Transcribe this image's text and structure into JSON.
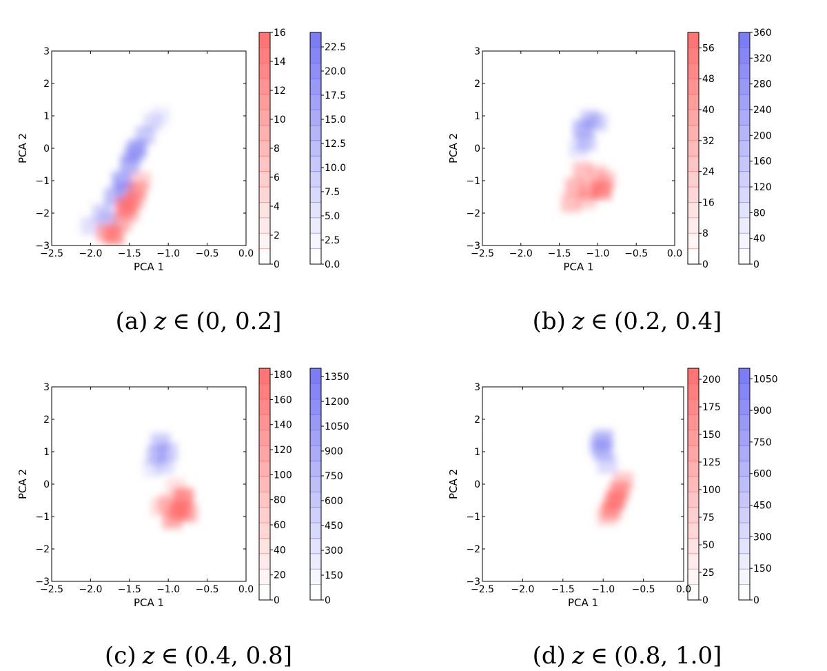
{
  "chart_data": [
    {
      "type": "heatmap",
      "caption": {
        "label": "(a)",
        "var": "z",
        "op": "∈",
        "range": "(0, 0.2]"
      },
      "xlabel": "PCA 1",
      "ylabel": "PCA 2",
      "xlim": [
        -2.5,
        0.0
      ],
      "ylim": [
        -3,
        3
      ],
      "xticks": [
        "−2.5",
        "−2.0",
        "−1.5",
        "−1.0",
        "−0.5",
        "0.0"
      ],
      "yticks": [
        "−3",
        "−2",
        "−1",
        "0",
        "1",
        "2",
        "3"
      ],
      "colorbars": [
        {
          "name": "red",
          "color": "#ff6666",
          "max": 16,
          "ticks": [
            "0",
            "2",
            "4",
            "6",
            "8",
            "10",
            "12",
            "14",
            "16"
          ]
        },
        {
          "name": "blue",
          "color": "#6e6ef2",
          "max": 24,
          "ticks": [
            "0.0",
            "2.5",
            "5.0",
            "7.5",
            "10.0",
            "12.5",
            "15.0",
            "17.5",
            "20.0",
            "22.5"
          ]
        }
      ],
      "series": [
        {
          "name": "blue",
          "cells": [
            [
              -2.0,
              -2.4,
              0.22
            ],
            [
              -1.85,
              -2.0,
              0.3
            ],
            [
              -1.7,
              -1.5,
              0.45
            ],
            [
              -1.6,
              -1.0,
              0.55
            ],
            [
              -1.5,
              -0.5,
              0.5
            ],
            [
              -1.4,
              0.0,
              0.55
            ],
            [
              -1.3,
              0.4,
              0.35
            ],
            [
              -1.2,
              0.8,
              0.2
            ],
            [
              -1.75,
              -2.2,
              0.3
            ],
            [
              -1.55,
              -1.3,
              0.4
            ],
            [
              -1.45,
              -0.2,
              0.4
            ],
            [
              -1.1,
              1.0,
              0.12
            ]
          ]
        },
        {
          "name": "red",
          "cells": [
            [
              -1.7,
              -2.7,
              0.7
            ],
            [
              -1.8,
              -2.6,
              0.5
            ],
            [
              -1.6,
              -2.3,
              0.45
            ],
            [
              -1.55,
              -1.8,
              0.75
            ],
            [
              -1.45,
              -1.6,
              0.6
            ],
            [
              -1.4,
              -1.3,
              0.5
            ],
            [
              -1.35,
              -1.0,
              0.3
            ],
            [
              -1.5,
              -2.0,
              0.4
            ]
          ]
        }
      ]
    },
    {
      "type": "heatmap",
      "caption": {
        "label": "(b)",
        "var": "z",
        "op": "∈",
        "range": "(0.2, 0.4]"
      },
      "xlabel": "PCA 1",
      "ylabel": "PCA 2",
      "xlim": [
        -2.5,
        0.0
      ],
      "ylim": [
        -3,
        3
      ],
      "xticks": [
        "−2.5",
        "−2.0",
        "−1.5",
        "−1.0",
        "−0.5",
        "0.0"
      ],
      "yticks": [
        "−3",
        "−2",
        "−1",
        "0",
        "1",
        "2",
        "3"
      ],
      "colorbars": [
        {
          "name": "red",
          "color": "#ff6666",
          "max": 60,
          "ticks": [
            "0",
            "8",
            "16",
            "24",
            "32",
            "40",
            "48",
            "56"
          ]
        },
        {
          "name": "blue",
          "color": "#6e6ef2",
          "max": 360,
          "ticks": [
            "0",
            "40",
            "80",
            "120",
            "160",
            "200",
            "240",
            "280",
            "320",
            "360"
          ]
        }
      ],
      "series": [
        {
          "name": "blue",
          "cells": [
            [
              -1.1,
              0.9,
              0.35
            ],
            [
              -1.2,
              0.6,
              0.45
            ],
            [
              -1.15,
              0.2,
              0.35
            ],
            [
              -1.0,
              0.8,
              0.3
            ],
            [
              -1.25,
              0.0,
              0.2
            ]
          ]
        },
        {
          "name": "red",
          "cells": [
            [
              -1.3,
              -1.2,
              0.45
            ],
            [
              -1.1,
              -1.3,
              0.55
            ],
            [
              -0.95,
              -1.3,
              0.75
            ],
            [
              -1.2,
              -0.7,
              0.4
            ],
            [
              -1.35,
              -1.7,
              0.4
            ],
            [
              -1.0,
              -0.8,
              0.35
            ],
            [
              -0.9,
              -1.0,
              0.4
            ],
            [
              -1.15,
              -1.6,
              0.3
            ]
          ]
        }
      ]
    },
    {
      "type": "heatmap",
      "caption": {
        "label": "(c)",
        "var": "z",
        "op": "∈",
        "range": "(0.4, 0.8]"
      },
      "xlabel": "PCA 1",
      "ylabel": "PCA 2",
      "xlim": [
        -2.5,
        0.0
      ],
      "ylim": [
        -3,
        3
      ],
      "xticks": [
        "−2.5",
        "−2.0",
        "−1.5",
        "−1.0",
        "−0.5",
        "0.0"
      ],
      "yticks": [
        "−3",
        "−2",
        "−1",
        "0",
        "1",
        "2",
        "3"
      ],
      "colorbars": [
        {
          "name": "red",
          "color": "#ff6666",
          "max": 185,
          "ticks": [
            "0",
            "20",
            "40",
            "60",
            "80",
            "100",
            "120",
            "140",
            "160",
            "180"
          ]
        },
        {
          "name": "blue",
          "color": "#6e6ef2",
          "max": 1400,
          "ticks": [
            "0",
            "150",
            "300",
            "450",
            "600",
            "750",
            "900",
            "1050",
            "1200",
            "1350"
          ]
        }
      ],
      "series": [
        {
          "name": "blue",
          "cells": [
            [
              -1.1,
              1.3,
              0.35
            ],
            [
              -1.15,
              0.9,
              0.4
            ],
            [
              -1.0,
              1.0,
              0.3
            ],
            [
              -1.05,
              0.6,
              0.25
            ],
            [
              -1.2,
              0.5,
              0.15
            ]
          ]
        },
        {
          "name": "red",
          "cells": [
            [
              -0.85,
              -0.8,
              0.8
            ],
            [
              -0.8,
              -0.4,
              0.7
            ],
            [
              -0.95,
              -1.1,
              0.55
            ],
            [
              -1.0,
              -0.6,
              0.4
            ],
            [
              -0.75,
              -0.9,
              0.5
            ],
            [
              -1.1,
              -0.7,
              0.25
            ],
            [
              -0.9,
              -0.1,
              0.2
            ]
          ]
        }
      ]
    },
    {
      "type": "heatmap",
      "caption": {
        "label": "(d)",
        "var": "z",
        "op": "∈",
        "range": "(0.8, 1.0]"
      },
      "xlabel": "PCA 1",
      "ylabel": "PCA 2",
      "xlim": [
        -2.5,
        0.0
      ],
      "ylim": [
        -3,
        3
      ],
      "xticks": [
        "−2.5",
        "−2.0",
        "−1.5",
        "−1.0",
        "−0.5",
        "0.0"
      ],
      "yticks": [
        "−3",
        "−2",
        "−1",
        "0",
        "1",
        "2",
        "3"
      ],
      "colorbars": [
        {
          "name": "red",
          "color": "#ff6666",
          "max": 210,
          "ticks": [
            "0",
            "25",
            "50",
            "75",
            "100",
            "125",
            "150",
            "175",
            "200"
          ]
        },
        {
          "name": "blue",
          "color": "#6e6ef2",
          "max": 1100,
          "ticks": [
            "0",
            "150",
            "300",
            "450",
            "600",
            "750",
            "900",
            "1050"
          ]
        }
      ],
      "series": [
        {
          "name": "blue",
          "cells": [
            [
              -1.0,
              1.4,
              0.45
            ],
            [
              -1.0,
              1.0,
              0.4
            ],
            [
              -0.95,
              0.6,
              0.25
            ],
            [
              -1.05,
              1.2,
              0.3
            ]
          ]
        },
        {
          "name": "red",
          "cells": [
            [
              -0.85,
              -0.5,
              0.75
            ],
            [
              -0.8,
              -0.2,
              0.6
            ],
            [
              -0.9,
              -0.8,
              0.6
            ],
            [
              -0.75,
              0.1,
              0.35
            ],
            [
              -0.95,
              -1.0,
              0.3
            ]
          ]
        }
      ]
    }
  ]
}
